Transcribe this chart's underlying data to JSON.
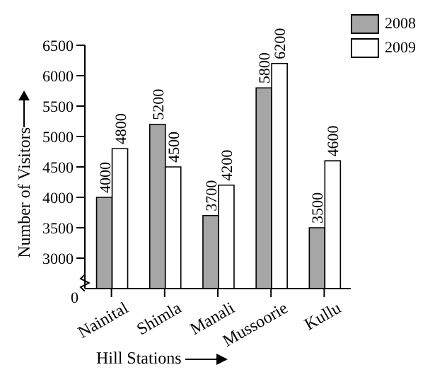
{
  "chart_data": {
    "type": "bar",
    "xlabel": "Hill Stations",
    "ylabel": "Number of Visitors",
    "categories": [
      "Nainital",
      "Shimla",
      "Manali",
      "Mussoorie",
      "Kullu"
    ],
    "series": [
      {
        "name": "2008",
        "color": "#a6a6a6",
        "values": [
          4000,
          5200,
          3700,
          5800,
          3500
        ]
      },
      {
        "name": "2009",
        "color": "#ffffff",
        "values": [
          4800,
          4500,
          4200,
          6200,
          4600
        ]
      }
    ],
    "ylim": [
      2500,
      6500
    ],
    "yticks": [
      3000,
      3500,
      4000,
      4500,
      5000,
      5500,
      6000,
      6500
    ],
    "annotations": [
      "0"
    ],
    "data_labels": true,
    "legend": "top right",
    "grid": false
  }
}
